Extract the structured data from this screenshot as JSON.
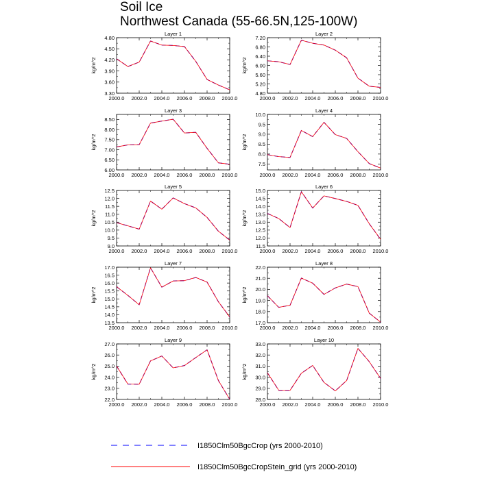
{
  "figure": {
    "title": "Soil Ice",
    "subtitle": "Northwest Canada (55-66.5N,125-100W)"
  },
  "legend": {
    "position": "bottom-left",
    "entries": [
      {
        "label": "I1850Clm50BgcCrop (yrs 2000-2010)",
        "color": "#0000ff",
        "style": "dashed"
      },
      {
        "label": "I1850Clm50BgcCropStein_grid (yrs 2000-2010)",
        "color": "#ff0000",
        "style": "solid"
      }
    ]
  },
  "chart_data": [
    {
      "type": "line",
      "title": "Layer 1",
      "ylabel": "kg/m^2",
      "x": [
        2000,
        2001,
        2002,
        2003,
        2004,
        2005,
        2006,
        2007,
        2008,
        2009,
        2010
      ],
      "xlim": [
        2000,
        2010
      ],
      "xticks": [
        "2000.0",
        "2002.0",
        "2004.0",
        "2006.0",
        "2008.0",
        "2010.0"
      ],
      "ylim": [
        3.3,
        4.8
      ],
      "yticks": [
        "3.30",
        "3.60",
        "3.90",
        "4.20",
        "4.50",
        "4.80"
      ],
      "series": [
        {
          "values": [
            4.23,
            4.02,
            4.14,
            4.71,
            4.6,
            4.59,
            4.56,
            4.16,
            3.67,
            3.52,
            3.39
          ]
        },
        {
          "values": [
            4.23,
            4.02,
            4.14,
            4.71,
            4.6,
            4.59,
            4.56,
            4.16,
            3.67,
            3.52,
            3.39
          ]
        }
      ]
    },
    {
      "type": "line",
      "title": "Layer 2",
      "ylabel": "kg/m^2",
      "x": [
        2000,
        2001,
        2002,
        2003,
        2004,
        2005,
        2006,
        2007,
        2008,
        2009,
        2010
      ],
      "xlim": [
        2000,
        2010
      ],
      "xticks": [
        "2000.0",
        "2002.0",
        "2004.0",
        "2006.0",
        "2008.0",
        "2010.0"
      ],
      "ylim": [
        4.8,
        7.2
      ],
      "yticks": [
        "4.80",
        "5.20",
        "5.60",
        "6.00",
        "6.40",
        "6.80",
        "7.20"
      ],
      "series": [
        {
          "values": [
            6.2,
            6.16,
            6.04,
            7.09,
            6.96,
            6.88,
            6.66,
            6.33,
            5.45,
            5.1,
            5.05
          ]
        },
        {
          "values": [
            6.2,
            6.16,
            6.04,
            7.09,
            6.96,
            6.88,
            6.66,
            6.33,
            5.45,
            5.1,
            5.05
          ]
        }
      ]
    },
    {
      "type": "line",
      "title": "Layer 3",
      "ylabel": "kg/m^2",
      "x": [
        2000,
        2001,
        2002,
        2003,
        2004,
        2005,
        2006,
        2007,
        2008,
        2009,
        2010
      ],
      "xlim": [
        2000,
        2010
      ],
      "xticks": [
        "2000.0",
        "2002.0",
        "2004.0",
        "2006.0",
        "2008.0",
        "2010.0"
      ],
      "ylim": [
        6.0,
        8.75
      ],
      "yticks": [
        "6.00",
        "6.50",
        "7.00",
        "7.50",
        "8.00",
        "8.50"
      ],
      "series": [
        {
          "values": [
            7.14,
            7.24,
            7.25,
            8.32,
            8.42,
            8.51,
            7.83,
            7.86,
            7.07,
            6.35,
            6.28
          ]
        },
        {
          "values": [
            7.14,
            7.24,
            7.25,
            8.32,
            8.42,
            8.51,
            7.83,
            7.86,
            7.07,
            6.35,
            6.28
          ]
        }
      ]
    },
    {
      "type": "line",
      "title": "Layer 4",
      "ylabel": "kg/m^2",
      "x": [
        2000,
        2001,
        2002,
        2003,
        2004,
        2005,
        2006,
        2007,
        2008,
        2009,
        2010
      ],
      "xlim": [
        2000,
        2010
      ],
      "xticks": [
        "2000.0",
        "2002.0",
        "2004.0",
        "2006.0",
        "2008.0",
        "2010.0"
      ],
      "ylim": [
        7.2,
        10.0
      ],
      "yticks": [
        "7.5",
        "8.0",
        "8.5",
        "9.0",
        "9.5",
        "10.0"
      ],
      "series": [
        {
          "values": [
            7.97,
            7.87,
            7.83,
            9.19,
            8.88,
            9.6,
            8.98,
            8.79,
            8.12,
            7.52,
            7.29
          ]
        },
        {
          "values": [
            7.97,
            7.87,
            7.83,
            9.19,
            8.88,
            9.6,
            8.98,
            8.79,
            8.12,
            7.52,
            7.29
          ]
        }
      ]
    },
    {
      "type": "line",
      "title": "Layer 5",
      "ylabel": "kg/m^2",
      "x": [
        2000,
        2001,
        2002,
        2003,
        2004,
        2005,
        2006,
        2007,
        2008,
        2009,
        2010
      ],
      "xlim": [
        2000,
        2010
      ],
      "xticks": [
        "2000.0",
        "2002.0",
        "2004.0",
        "2006.0",
        "2008.0",
        "2010.0"
      ],
      "ylim": [
        9.0,
        12.5
      ],
      "yticks": [
        "9.0",
        "9.5",
        "10.0",
        "10.5",
        "11.0",
        "11.5",
        "12.0",
        "12.5"
      ],
      "series": [
        {
          "values": [
            10.47,
            10.27,
            10.06,
            11.83,
            11.32,
            12.03,
            11.67,
            11.4,
            10.8,
            9.93,
            9.37
          ]
        },
        {
          "values": [
            10.47,
            10.27,
            10.06,
            11.83,
            11.32,
            12.03,
            11.67,
            11.4,
            10.8,
            9.93,
            9.37
          ]
        }
      ]
    },
    {
      "type": "line",
      "title": "Layer 6",
      "ylabel": "kg/m^2",
      "x": [
        2000,
        2001,
        2002,
        2003,
        2004,
        2005,
        2006,
        2007,
        2008,
        2009,
        2010
      ],
      "xlim": [
        2000,
        2010
      ],
      "xticks": [
        "2000.0",
        "2002.0",
        "2004.0",
        "2006.0",
        "2008.0",
        "2010.0"
      ],
      "ylim": [
        11.5,
        15.0
      ],
      "yticks": [
        "11.5",
        "12.0",
        "12.5",
        "13.0",
        "13.5",
        "14.0",
        "14.5",
        "15.0"
      ],
      "series": [
        {
          "values": [
            13.55,
            13.23,
            12.66,
            14.92,
            13.89,
            14.66,
            14.49,
            14.31,
            14.06,
            12.9,
            11.92
          ]
        },
        {
          "values": [
            13.55,
            13.23,
            12.66,
            14.92,
            13.89,
            14.66,
            14.49,
            14.31,
            14.06,
            12.9,
            11.92
          ]
        }
      ]
    },
    {
      "type": "line",
      "title": "Layer 7",
      "ylabel": "kg/m^2",
      "x": [
        2000,
        2001,
        2002,
        2003,
        2004,
        2005,
        2006,
        2007,
        2008,
        2009,
        2010
      ],
      "xlim": [
        2000,
        2010
      ],
      "xticks": [
        "2000.0",
        "2002.0",
        "2004.0",
        "2006.0",
        "2008.0",
        "2010.0"
      ],
      "ylim": [
        13.5,
        17.0
      ],
      "yticks": [
        "13.5",
        "14.0",
        "14.5",
        "15.0",
        "15.5",
        "16.0",
        "16.5",
        "17.0"
      ],
      "series": [
        {
          "values": [
            15.77,
            15.22,
            14.63,
            16.96,
            15.74,
            16.13,
            16.15,
            16.35,
            16.06,
            14.82,
            13.86
          ]
        },
        {
          "values": [
            15.77,
            15.22,
            14.63,
            16.96,
            15.74,
            16.13,
            16.15,
            16.35,
            16.06,
            14.82,
            13.86
          ]
        }
      ]
    },
    {
      "type": "line",
      "title": "Layer 8",
      "ylabel": "kg/m^2",
      "x": [
        2000,
        2001,
        2002,
        2003,
        2004,
        2005,
        2006,
        2007,
        2008,
        2009,
        2010
      ],
      "xlim": [
        2000,
        2010
      ],
      "xticks": [
        "2000.0",
        "2002.0",
        "2004.0",
        "2006.0",
        "2008.0",
        "2010.0"
      ],
      "ylim": [
        17.0,
        22.0
      ],
      "yticks": [
        "17.0",
        "18.0",
        "19.0",
        "20.0",
        "21.0",
        "22.0"
      ],
      "series": [
        {
          "values": [
            19.43,
            18.38,
            18.57,
            21.02,
            20.56,
            19.55,
            20.13,
            20.48,
            20.25,
            17.86,
            17.05
          ]
        },
        {
          "values": [
            19.43,
            18.38,
            18.57,
            21.02,
            20.56,
            19.55,
            20.13,
            20.48,
            20.25,
            17.86,
            17.05
          ]
        }
      ]
    },
    {
      "type": "line",
      "title": "Layer 9",
      "ylabel": "kg/m^2",
      "x": [
        2000,
        2001,
        2002,
        2003,
        2004,
        2005,
        2006,
        2007,
        2008,
        2009,
        2010
      ],
      "xlim": [
        2000,
        2010
      ],
      "xticks": [
        "2000.0",
        "2002.0",
        "2004.0",
        "2006.0",
        "2008.0",
        "2010.0"
      ],
      "ylim": [
        22.0,
        27.0
      ],
      "yticks": [
        "22.0",
        "23.0",
        "24.0",
        "25.0",
        "26.0",
        "27.0"
      ],
      "series": [
        {
          "values": [
            25.01,
            23.38,
            23.37,
            25.47,
            25.91,
            24.84,
            25.05,
            25.77,
            26.47,
            23.7,
            22.01
          ]
        },
        {
          "values": [
            25.01,
            23.38,
            23.37,
            25.47,
            25.91,
            24.84,
            25.05,
            25.77,
            26.47,
            23.7,
            22.01
          ]
        }
      ]
    },
    {
      "type": "line",
      "title": "Layer 10",
      "ylabel": "kg/m^2",
      "x": [
        2000,
        2001,
        2002,
        2003,
        2004,
        2005,
        2006,
        2007,
        2008,
        2009,
        2010
      ],
      "xlim": [
        2000,
        2010
      ],
      "xticks": [
        "2000.0",
        "2002.0",
        "2004.0",
        "2006.0",
        "2008.0",
        "2010.0"
      ],
      "ylim": [
        28.0,
        33.0
      ],
      "yticks": [
        "28.0",
        "29.0",
        "30.0",
        "31.0",
        "32.0",
        "33.0"
      ],
      "series": [
        {
          "values": [
            30.4,
            28.82,
            28.82,
            30.36,
            31.06,
            29.53,
            28.77,
            29.7,
            32.6,
            31.4,
            29.89
          ]
        },
        {
          "values": [
            30.4,
            28.82,
            28.82,
            30.36,
            31.06,
            29.53,
            28.77,
            29.7,
            32.6,
            31.4,
            29.89
          ]
        }
      ]
    }
  ]
}
